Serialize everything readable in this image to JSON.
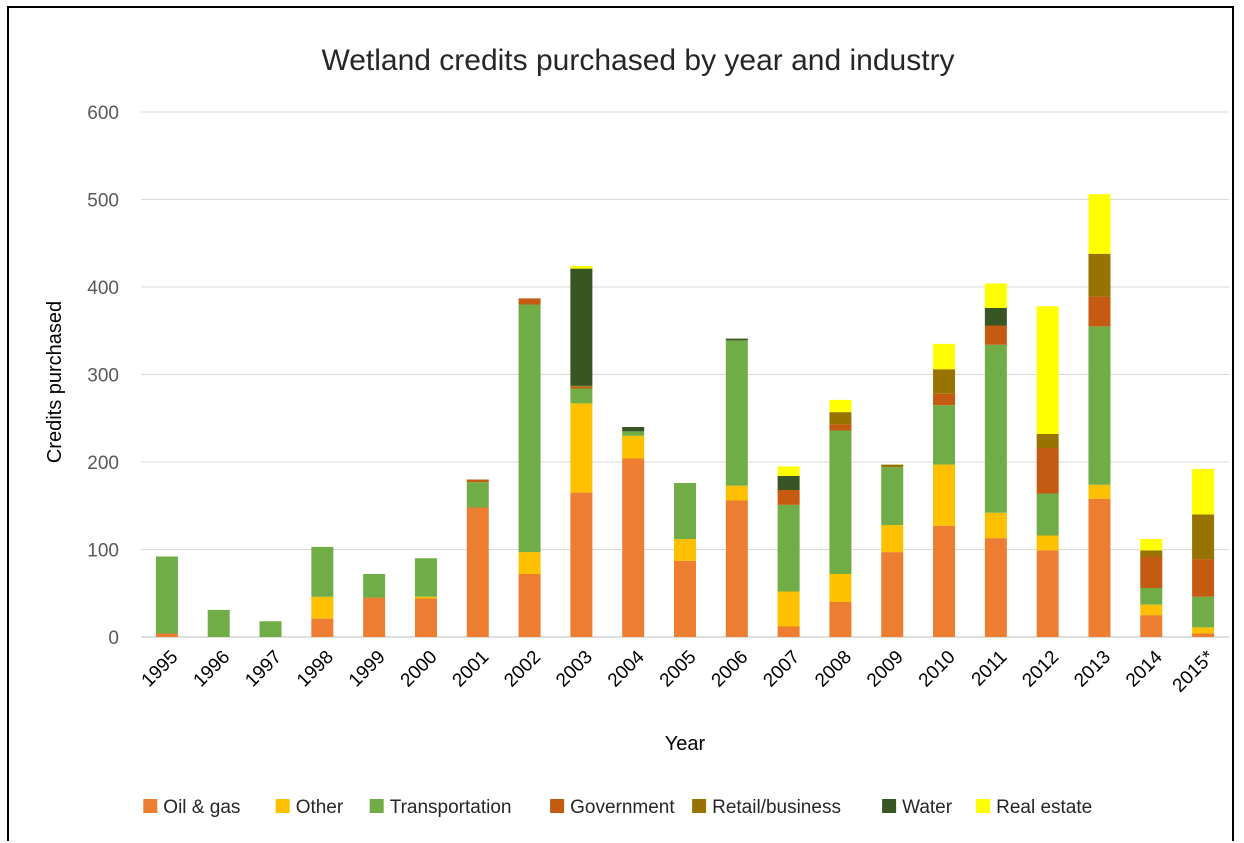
{
  "chart_data": {
    "type": "bar",
    "stacked": true,
    "title": "Wetland credits purchased by year and industry",
    "xlabel": "Year",
    "ylabel": "Credits purchased",
    "ylim": [
      0,
      600
    ],
    "yticks": [
      0,
      100,
      200,
      300,
      400,
      500,
      600
    ],
    "grid": true,
    "legend_position": "bottom",
    "categories": [
      "1995",
      "1996",
      "1997",
      "1998",
      "1999",
      "2000",
      "2001",
      "2002",
      "2003",
      "2004",
      "2005",
      "2006",
      "2007",
      "2008",
      "2009",
      "2010",
      "2011",
      "2012",
      "2013",
      "2014",
      "2015*"
    ],
    "series": [
      {
        "name": "Oil & gas",
        "color": "#ED7D31",
        "values": [
          4,
          0,
          0,
          21,
          45,
          44,
          148,
          72,
          165,
          204,
          87,
          156,
          12,
          40,
          97,
          127,
          113,
          99,
          158,
          25,
          4
        ]
      },
      {
        "name": "Other",
        "color": "#FFC000",
        "values": [
          0,
          0,
          0,
          25,
          0,
          2,
          0,
          25,
          102,
          26,
          25,
          17,
          40,
          32,
          31,
          70,
          29,
          17,
          16,
          12,
          7
        ]
      },
      {
        "name": "Transportation",
        "color": "#70AD47",
        "values": [
          88,
          31,
          18,
          57,
          27,
          44,
          29,
          283,
          17,
          5,
          64,
          166,
          99,
          164,
          66,
          68,
          192,
          48,
          181,
          19,
          35
        ]
      },
      {
        "name": "Government",
        "color": "#C55A11",
        "values": [
          0,
          0,
          0,
          0,
          0,
          0,
          3,
          7,
          2,
          0,
          0,
          0,
          17,
          7,
          0,
          13,
          22,
          52,
          34,
          36,
          43
        ]
      },
      {
        "name": "Retail/business",
        "color": "#997300",
        "values": [
          0,
          0,
          0,
          0,
          0,
          0,
          0,
          0,
          1,
          0,
          0,
          0,
          0,
          14,
          3,
          28,
          0,
          16,
          49,
          7,
          51
        ]
      },
      {
        "name": "Water",
        "color": "#375623",
        "values": [
          0,
          0,
          0,
          0,
          0,
          0,
          0,
          0,
          134,
          5,
          0,
          2,
          16,
          0,
          0,
          0,
          20,
          0,
          0,
          0,
          0
        ]
      },
      {
        "name": "Real estate",
        "color": "#FFFF00",
        "values": [
          0,
          0,
          0,
          0,
          0,
          0,
          0,
          0,
          3,
          0,
          0,
          0,
          11,
          14,
          0,
          29,
          28,
          146,
          68,
          13,
          52
        ]
      }
    ]
  }
}
